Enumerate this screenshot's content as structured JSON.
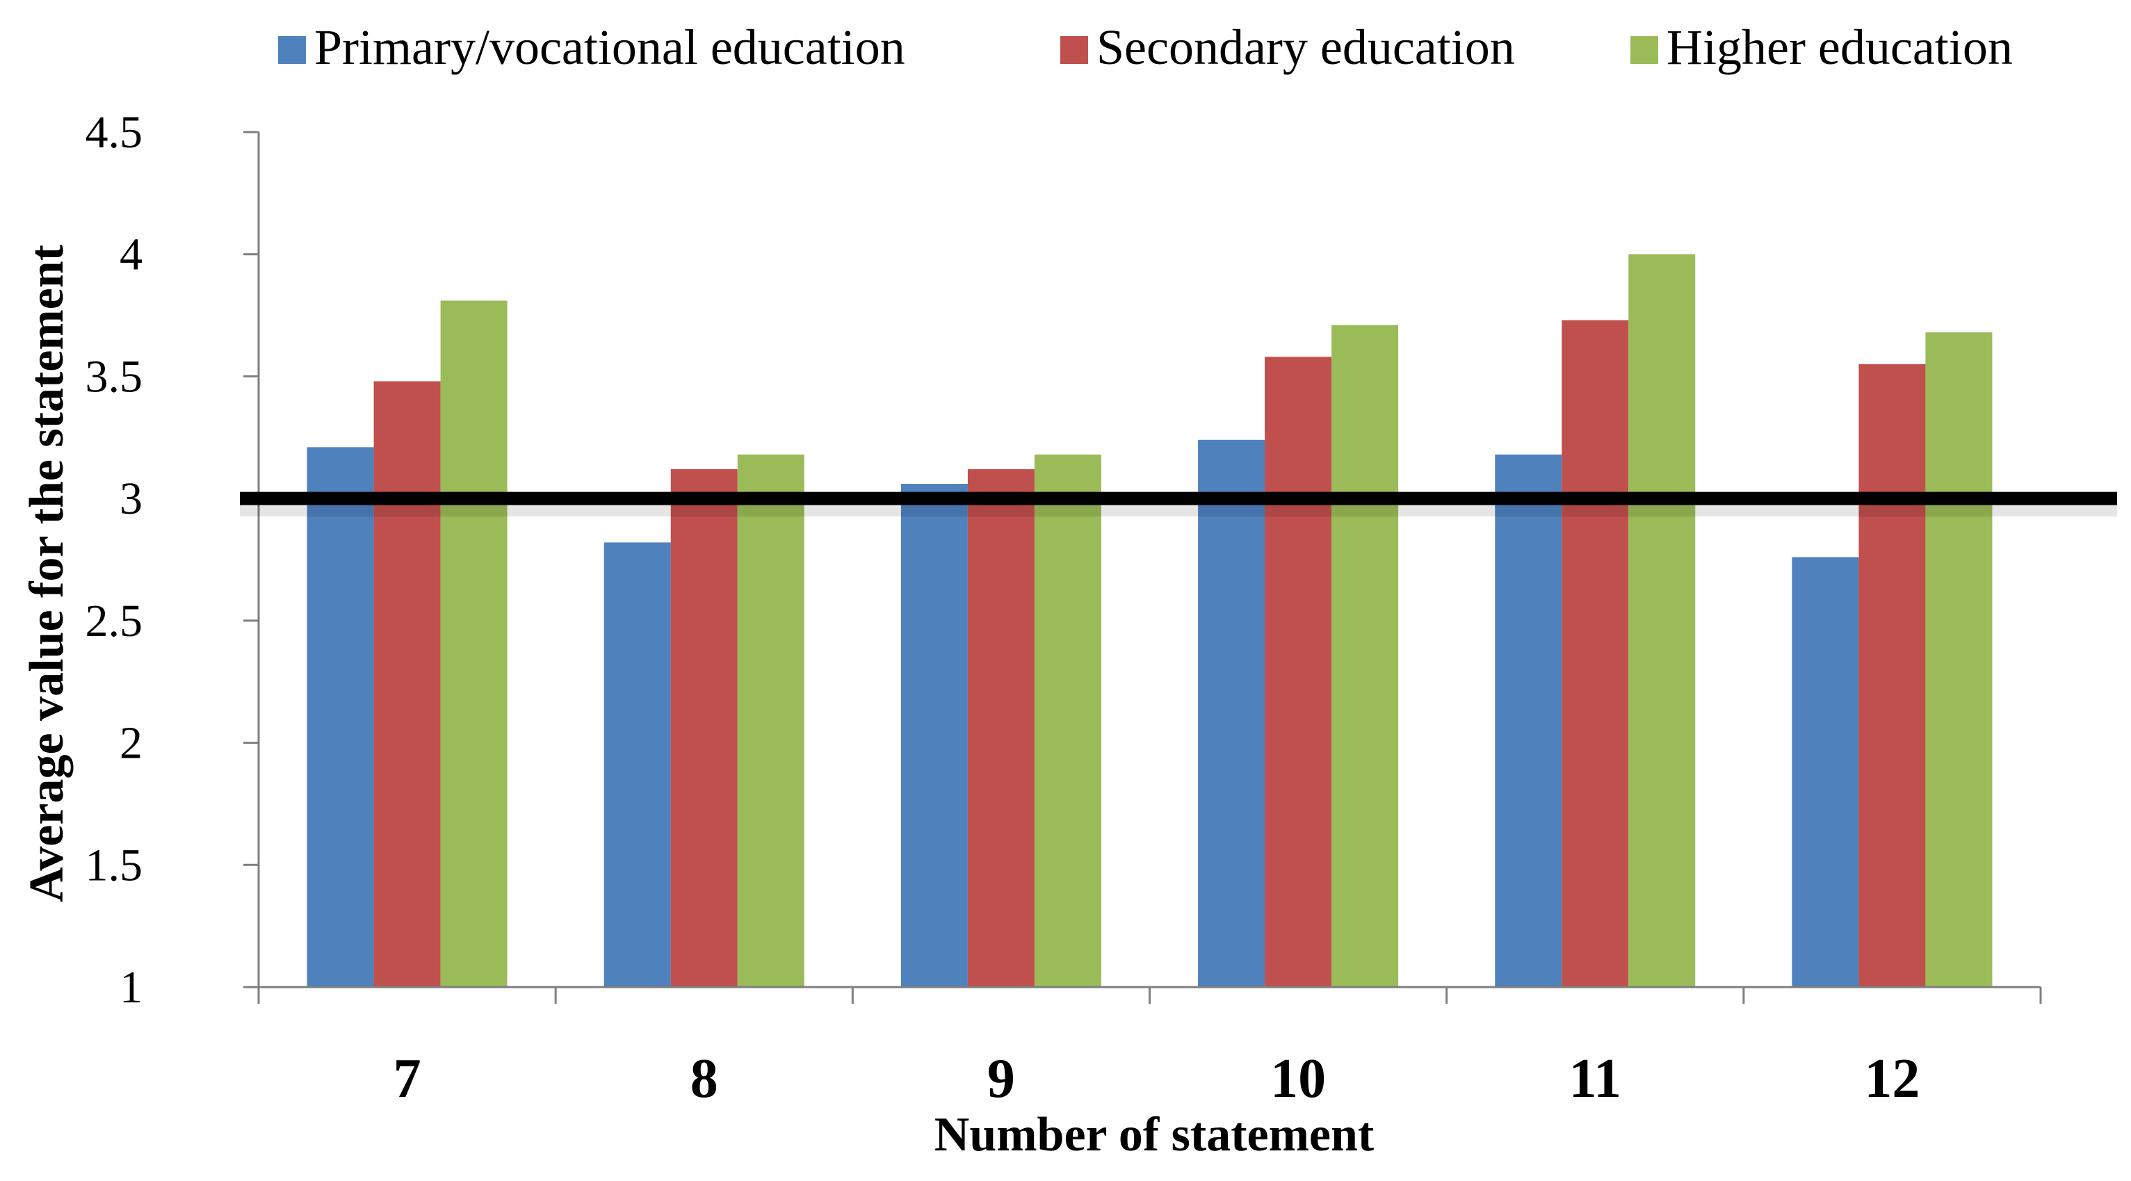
{
  "chart_data": {
    "type": "bar",
    "title": "",
    "xlabel": "Number of statement",
    "ylabel": "Average value for the statement",
    "categories": [
      "7",
      "8",
      "9",
      "10",
      "11",
      "12"
    ],
    "series": [
      {
        "name": "Primary/vocational education",
        "color": "#4F81BD",
        "values": [
          3.21,
          2.82,
          3.06,
          3.24,
          3.18,
          2.76
        ]
      },
      {
        "name": "Secondary education",
        "color": "#C0504D",
        "values": [
          3.48,
          3.12,
          3.12,
          3.58,
          3.73,
          3.55
        ]
      },
      {
        "name": "Higher education",
        "color": "#9BBB59",
        "values": [
          3.81,
          3.18,
          3.18,
          3.71,
          4.0,
          3.68
        ]
      }
    ],
    "ylim": [
      1,
      4.5
    ],
    "yticks": [
      "1",
      "1.5",
      "2",
      "2.5",
      "3",
      "3.5",
      "4",
      "4.5"
    ],
    "reference_line": {
      "y": 3,
      "color": "#000000"
    },
    "legend": "top",
    "grid": false
  }
}
